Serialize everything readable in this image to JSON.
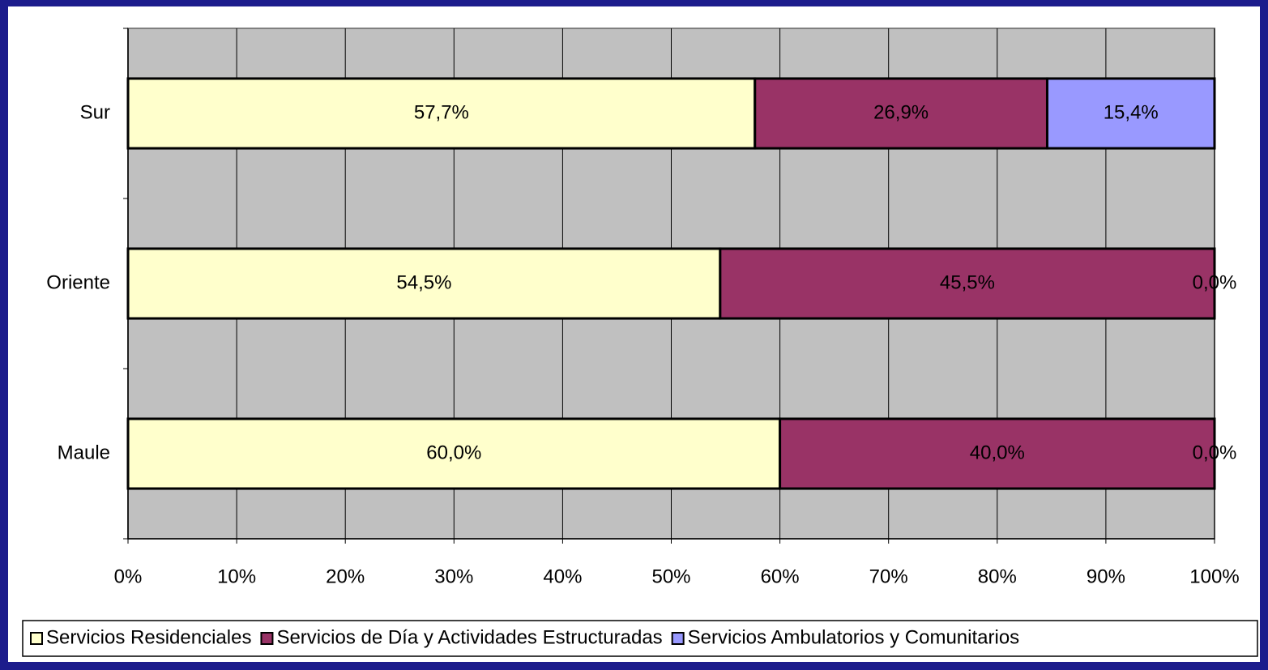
{
  "chart_data": {
    "type": "stacked-bar-horizontal",
    "categories": [
      "Maule",
      "Oriente",
      "Sur"
    ],
    "series": [
      {
        "name": "Servicios Residenciales",
        "color": "#ffffcc",
        "values": [
          60.0,
          54.5,
          57.7
        ],
        "value_labels": [
          "60,0%",
          "54,5%",
          "57,7%"
        ]
      },
      {
        "name": "Servicios de Día y Actividades Estructuradas",
        "color": "#993366",
        "values": [
          40.0,
          45.5,
          26.9
        ],
        "value_labels": [
          "40,0%",
          "45,5%",
          "26,9%"
        ]
      },
      {
        "name": "Servicios Ambulatorios y Comunitarios",
        "color": "#9999ff",
        "values": [
          0.0,
          0.0,
          15.4
        ],
        "value_labels": [
          "0,0%",
          "0,0%",
          "15,4%"
        ]
      }
    ],
    "xlim": [
      0,
      100
    ],
    "xticks": [
      {
        "value": 0,
        "label": "0%"
      },
      {
        "value": 10,
        "label": "10%"
      },
      {
        "value": 20,
        "label": "20%"
      },
      {
        "value": 30,
        "label": "30%"
      },
      {
        "value": 40,
        "label": "40%"
      },
      {
        "value": 50,
        "label": "50%"
      },
      {
        "value": 60,
        "label": "60%"
      },
      {
        "value": 70,
        "label": "70%"
      },
      {
        "value": 80,
        "label": "80%"
      },
      {
        "value": 90,
        "label": "90%"
      },
      {
        "value": 100,
        "label": "100%"
      }
    ],
    "grid": true,
    "legend": "bottom",
    "plot_background": "#c0c0c0"
  }
}
